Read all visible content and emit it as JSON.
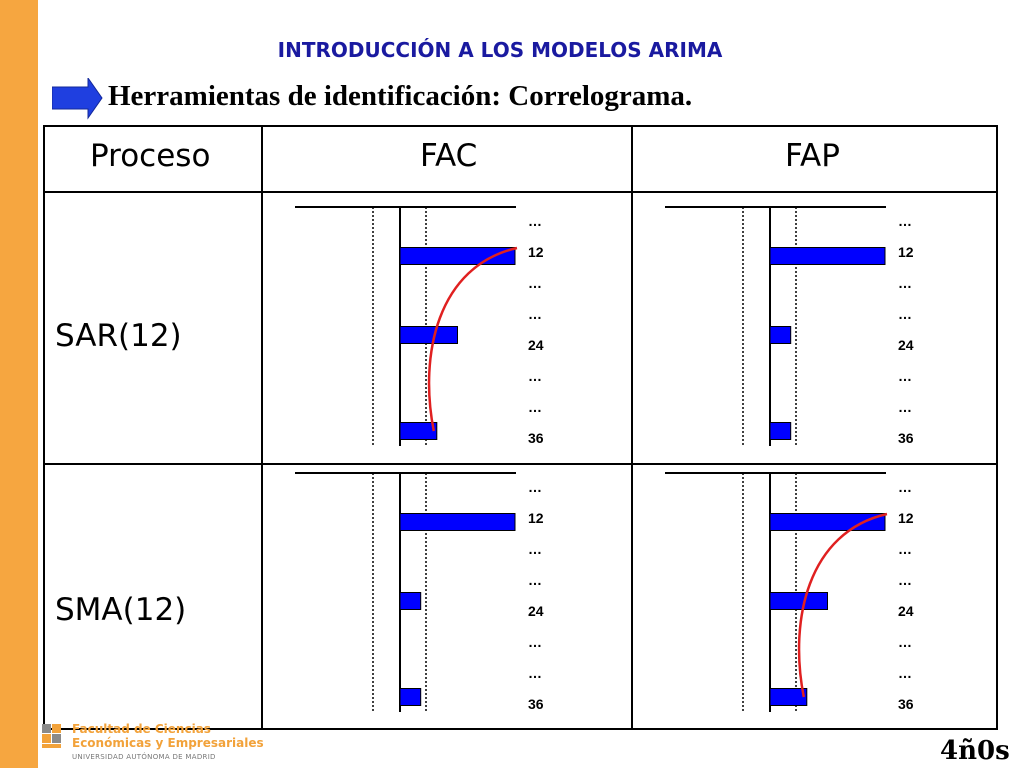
{
  "title": "INTRODUCCIÓN A LOS MODELOS ARIMA",
  "subtitle": "Herramientas de identificación: Correlograma.",
  "table": {
    "headers": [
      "Proceso",
      "FAC",
      "FAP"
    ],
    "rows": [
      {
        "label": "SAR(12)"
      },
      {
        "label": "SMA(12)"
      }
    ]
  },
  "lag_labels": [
    "…",
    "12",
    "…",
    "…",
    "24",
    "…",
    "…",
    "36"
  ],
  "panels": [
    {
      "name": "sar-fac",
      "bars": [
        {
          "lag": 12,
          "value": 1.0
        },
        {
          "lag": 24,
          "value": 0.5
        },
        {
          "lag": 36,
          "value": 0.32
        }
      ],
      "decay_curve": true,
      "curve_color": "#e02020"
    },
    {
      "name": "sar-fap",
      "bars": [
        {
          "lag": 12,
          "value": 1.0
        },
        {
          "lag": 24,
          "value": 0.18
        },
        {
          "lag": 36,
          "value": 0.18
        }
      ],
      "decay_curve": false
    },
    {
      "name": "sma-fac",
      "bars": [
        {
          "lag": 12,
          "value": 1.0
        },
        {
          "lag": 24,
          "value": 0.18
        },
        {
          "lag": 36,
          "value": 0.18
        }
      ],
      "decay_curve": false
    },
    {
      "name": "sma-fap",
      "bars": [
        {
          "lag": 12,
          "value": 1.0
        },
        {
          "lag": 24,
          "value": 0.5
        },
        {
          "lag": 36,
          "value": 0.32
        }
      ],
      "decay_curve": true,
      "curve_color": "#e02020"
    }
  ],
  "colors": {
    "bar": "#0000ff",
    "accent": "#f6a640",
    "title": "#1a1aa0",
    "curve": "#e02020"
  },
  "footer": {
    "logo_line1": "Facultad de Ciencias",
    "logo_line2": "Económicas y Empresariales",
    "logo_line3": "UNIVERSIDAD AUTÓNOMA DE MADRID",
    "brand": "4ñ0s"
  }
}
